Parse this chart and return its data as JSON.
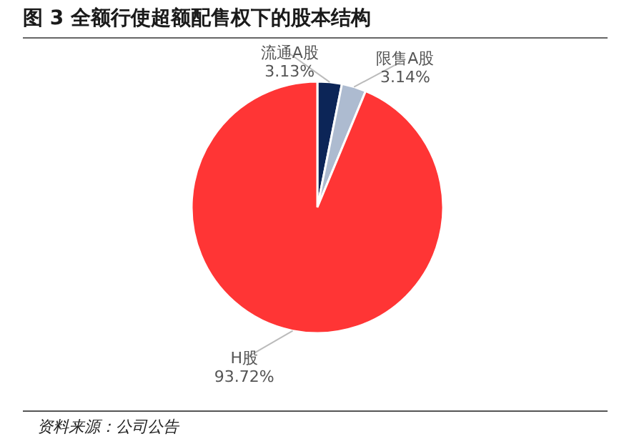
{
  "chart_data": {
    "type": "pie",
    "title": "图 3  全额行使超额配售权下的股本结构",
    "categories": [
      "流通A股",
      "限售A股",
      "H股"
    ],
    "values": [
      3.13,
      3.14,
      93.72
    ],
    "value_labels": [
      "3.13%",
      "3.14%",
      "93.72%"
    ],
    "colors": [
      "#0c2557",
      "#adbbd0",
      "#ff3535"
    ],
    "annotations": [
      "资料来源：公司公告"
    ]
  }
}
